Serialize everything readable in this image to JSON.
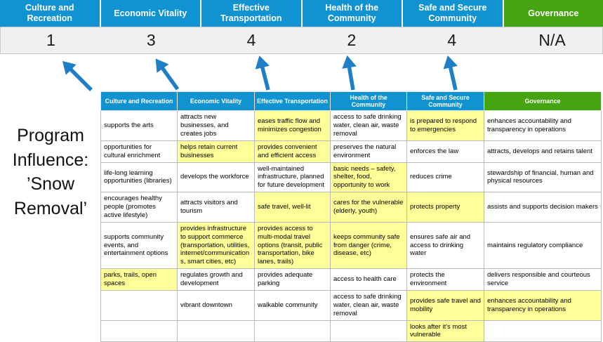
{
  "colors": {
    "pillar_blue": "#1193d2",
    "pillar_green": "#47a411",
    "highlight_yellow": "#ffff99",
    "arrow_blue": "#1e7ec6",
    "score_strip_bg": "#f0f0f0"
  },
  "pillars": [
    {
      "label": "Culture and Recreation",
      "color": "blue",
      "score": "1"
    },
    {
      "label": "Economic Vitality",
      "color": "blue",
      "score": "3"
    },
    {
      "label": "Effective Transportation",
      "color": "blue",
      "score": "4"
    },
    {
      "label": "Health of the Community",
      "color": "blue",
      "score": "2"
    },
    {
      "label": "Safe and Secure Community",
      "color": "blue",
      "score": "4"
    },
    {
      "label": "Governance",
      "color": "green",
      "score": "N/A"
    }
  ],
  "side_text": "Program Influence: ’Snow Removal’",
  "table": {
    "headers": [
      {
        "label": "Culture and Recreation",
        "color": "blue"
      },
      {
        "label": "Economic Vitality",
        "color": "blue"
      },
      {
        "label": "Effective Transportation",
        "color": "blue"
      },
      {
        "label": "Health of the Community",
        "color": "blue"
      },
      {
        "label": "Safe and Secure Community",
        "color": "blue"
      },
      {
        "label": "Governance",
        "color": "green"
      }
    ],
    "rows": [
      [
        {
          "text": "supports the arts",
          "highlight": false
        },
        {
          "text": "attracts new businesses, and creates jobs",
          "highlight": false
        },
        {
          "text": "eases traffic flow and minimizes congestion",
          "highlight": true
        },
        {
          "text": "access to safe drinking water, clean air, waste removal",
          "highlight": false
        },
        {
          "text": "is prepared to respond to emergencies",
          "highlight": true
        },
        {
          "text": "enhances accountability and transparency in operations",
          "highlight": false
        }
      ],
      [
        {
          "text": "opportunities for cultural enrichment",
          "highlight": false
        },
        {
          "text": "helps retain current businesses",
          "highlight": true
        },
        {
          "text": "provides convenient and efficient access",
          "highlight": true
        },
        {
          "text": "preserves the natural environment",
          "highlight": false
        },
        {
          "text": "enforces the law",
          "highlight": false
        },
        {
          "text": "attracts, develops and retains talent",
          "highlight": false
        }
      ],
      [
        {
          "text": "life-long learning opportunities (libraries)",
          "highlight": false
        },
        {
          "text": "develops the workforce",
          "highlight": false
        },
        {
          "text": "well-maintained infrastructure, planned for future development",
          "highlight": false
        },
        {
          "text": "basic needs – safety, shelter, food, opportunity to work",
          "highlight": true
        },
        {
          "text": "reduces crime",
          "highlight": false
        },
        {
          "text": "stewardship of financial, human and physical resources",
          "highlight": false
        }
      ],
      [
        {
          "text": "encourages healthy people (promotes active lifestyle)",
          "highlight": false
        },
        {
          "text": "attracts visitors and tourism",
          "highlight": false
        },
        {
          "text": "safe travel, well-lit",
          "highlight": true
        },
        {
          "text": "cares for the vulnerable (elderly, youth)",
          "highlight": true
        },
        {
          "text": "protects property",
          "highlight": true
        },
        {
          "text": "assists and supports decision makers",
          "highlight": false
        }
      ],
      [
        {
          "text": "supports community events, and entertainment options",
          "highlight": false
        },
        {
          "text": "provides infrastructure to support commerce (transportation, utilities, internet/communications, smart cities, etc)",
          "highlight": true
        },
        {
          "text": "provides access to multi-modal travel options (transit, public transportation, bike lanes, trails)",
          "highlight": true
        },
        {
          "text": "keeps community safe from danger (crime, disease, etc)",
          "highlight": true
        },
        {
          "text": "ensures safe air and access to drinking water",
          "highlight": false
        },
        {
          "text": "maintains regulatory compliance",
          "highlight": false
        }
      ],
      [
        {
          "text": "parks, trails, open spaces",
          "highlight": true
        },
        {
          "text": "regulates growth and development",
          "highlight": false
        },
        {
          "text": "provides adequate parking",
          "highlight": false
        },
        {
          "text": "access to health care",
          "highlight": false
        },
        {
          "text": "protects the environment",
          "highlight": false
        },
        {
          "text": "delivers responsible and courteous service",
          "highlight": false
        }
      ],
      [
        {
          "text": "",
          "highlight": false
        },
        {
          "text": "vibrant downtown",
          "highlight": false
        },
        {
          "text": "walkable community",
          "highlight": false
        },
        {
          "text": "access to safe drinking water, clean air, waste removal",
          "highlight": false
        },
        {
          "text": "provides safe travel and mobility",
          "highlight": true
        },
        {
          "text": "enhances accountability and transparency in operations",
          "highlight": true
        }
      ],
      [
        {
          "text": "",
          "highlight": false
        },
        {
          "text": "",
          "highlight": false
        },
        {
          "text": "",
          "highlight": false
        },
        {
          "text": "",
          "highlight": false
        },
        {
          "text": "looks after it's most vulnerable",
          "highlight": true
        },
        {
          "text": "",
          "highlight": false
        }
      ]
    ]
  }
}
